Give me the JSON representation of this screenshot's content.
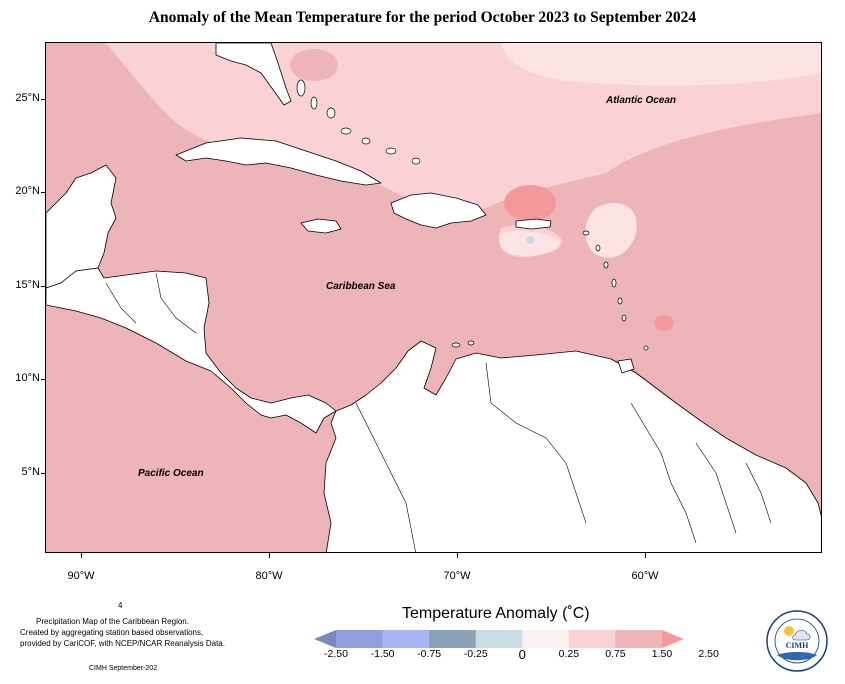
{
  "title": "Anomaly of the Mean Temperature for the period October 2023 to September 2024",
  "map": {
    "lat_labels": [
      "25°N",
      "20°N",
      "15°N",
      "10°N",
      "5°N"
    ],
    "lon_labels": [
      "90°W",
      "80°W",
      "70°W",
      "60°W"
    ],
    "regions": {
      "atlantic": "Atlantic Ocean",
      "caribbean": "Caribbean Sea",
      "pacific": "Pacific Ocean"
    },
    "colors": {
      "land": "#ffffff",
      "coast": "#000000",
      "class_0_025": "#fde3e3",
      "class_025_075": "#fad1d5",
      "class_075_150": "#edb5b8",
      "class_150_250": "#f4999b"
    }
  },
  "legend": {
    "title": "Temperature Anomaly (˚C)",
    "ticks": [
      "-2.50",
      "-1.50",
      "-0.75",
      "-0.25",
      "0",
      "0.25",
      "0.75",
      "1.50",
      "2.50"
    ],
    "colors": [
      "#7b89c0",
      "#8f9fdc",
      "#a7b7f5",
      "#8aa2b6",
      "#c9dce1",
      "#fbf1f1",
      "#fad1d5",
      "#edb5b8",
      "#f4999b"
    ]
  },
  "notes": {
    "page_number": "4",
    "description_line1": "Precipitation Map of the Caribbean Region.",
    "description_line2": "Created by aggregating station based observations,",
    "description_line3": "provided by CariCOF, with NCEP/NCAR Reanalysis Data.",
    "credit": "CIMH September-202"
  },
  "logo": {
    "text": "CIMH"
  }
}
